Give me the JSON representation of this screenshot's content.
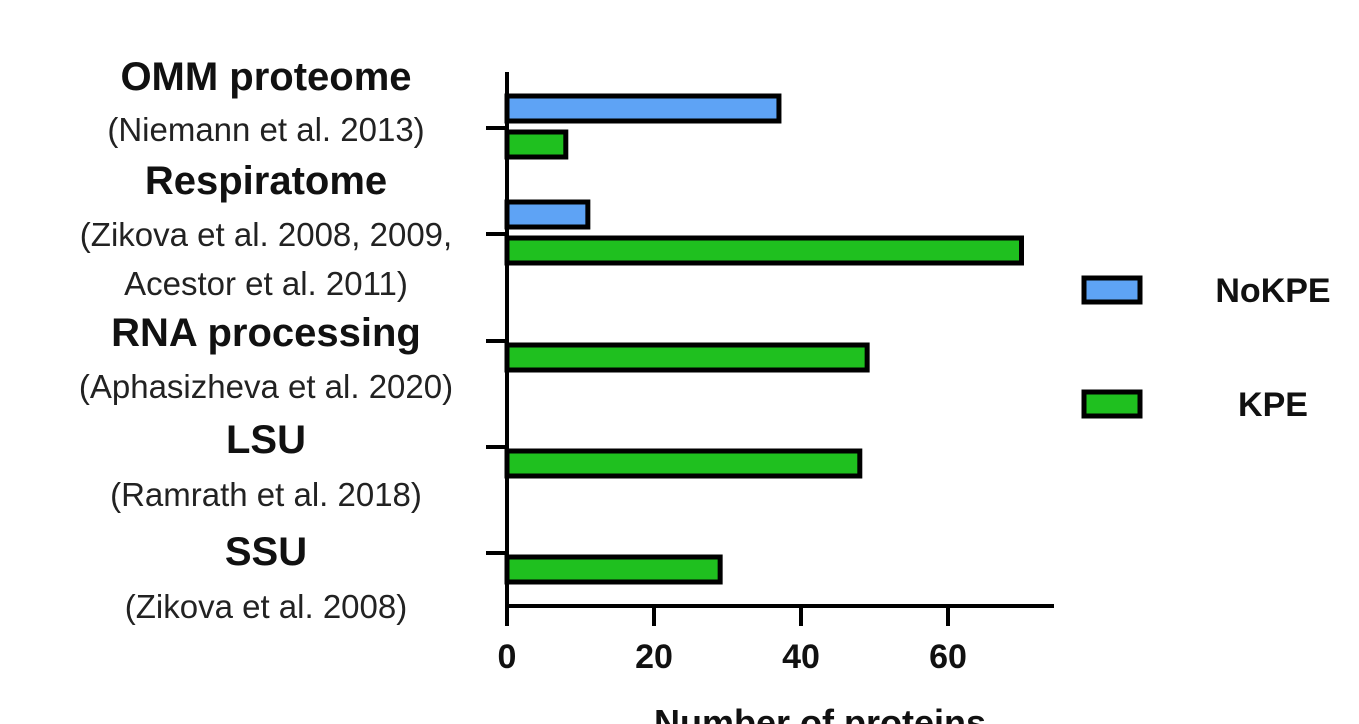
{
  "chart_data": {
    "type": "bar",
    "orientation": "horizontal",
    "categories": [
      {
        "title": "OMM proteome",
        "subtitle": [
          "(Niemann et al. 2013)"
        ]
      },
      {
        "title": "Respiratome",
        "subtitle": [
          "(Zikova et al. 2008, 2009,",
          "Acestor et al. 2011)"
        ]
      },
      {
        "title": "RNA processing",
        "subtitle": [
          "(Aphasizheva et al. 2020)"
        ]
      },
      {
        "title": "LSU",
        "subtitle": [
          "(Ramrath et al. 2018)"
        ]
      },
      {
        "title": "SSU",
        "subtitle": [
          "(Zikova et al. 2008)"
        ]
      }
    ],
    "series": [
      {
        "name": "NoKPE",
        "color": "#5ea3f5",
        "values": [
          37,
          11,
          null,
          null,
          null
        ]
      },
      {
        "name": "KPE",
        "color": "#1fc01f",
        "values": [
          8,
          70,
          49,
          48,
          29
        ]
      }
    ],
    "xlabel": "Number of proteins",
    "xlim": [
      0,
      74
    ],
    "xticks": [
      "0",
      "20",
      "40",
      "60"
    ],
    "legend_position": "right",
    "grid": false
  }
}
